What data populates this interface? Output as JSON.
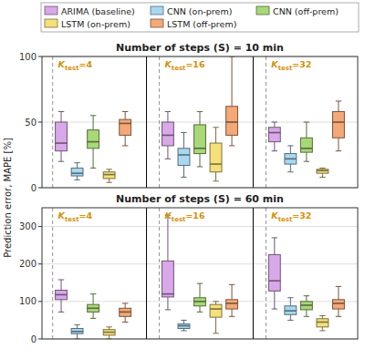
{
  "chart_data": [
    {
      "type": "box",
      "title": "Number of steps (S) = 10 min",
      "categories": [
        "Ktest=4",
        "Ktest=16",
        "Ktest=32"
      ],
      "ylim": [
        0,
        100
      ],
      "yticks": [
        0,
        50,
        100
      ],
      "grid": true,
      "legend": "top",
      "tick_labels": "y",
      "series": [
        {
          "name": "ARIMA (baseline)",
          "color": "#d9a8e8",
          "values": [
            [
              20,
              28,
              34,
              50,
              58
            ],
            [
              22,
              32,
              40,
              50,
              58
            ],
            [
              28,
              35,
              42,
              46,
              50
            ]
          ]
        },
        {
          "name": "CNN (on-prem)",
          "color": "#a8d8f0",
          "values": [
            [
              6,
              9,
              11,
              15,
              19
            ],
            [
              8,
              17,
              25,
              30,
              42
            ],
            [
              12,
              18,
              22,
              26,
              32
            ]
          ]
        },
        {
          "name": "CNN (off-prem)",
          "color": "#a8d878",
          "values": [
            [
              15,
              30,
              35,
              44,
              55
            ],
            [
              16,
              26,
              30,
              48,
              58
            ],
            [
              20,
              27,
              30,
              38,
              50
            ]
          ]
        },
        {
          "name": "LSTM (on-prem)",
          "color": "#f5e07a",
          "values": [
            [
              4,
              7,
              10,
              12,
              14
            ],
            [
              5,
              12,
              18,
              34,
              46
            ],
            [
              8,
              11,
              13,
              14,
              15
            ]
          ]
        },
        {
          "name": "LSTM (off-prem)",
          "color": "#f4a878",
          "values": [
            [
              32,
              40,
              49,
              52,
              58
            ],
            [
              32,
              40,
              50,
              62,
              100
            ],
            [
              28,
              38,
              50,
              58,
              66
            ]
          ]
        }
      ]
    },
    {
      "type": "box",
      "title": "Number of steps (S) = 60 min",
      "ylabel": "Prediction error, MAPE [%]",
      "categories": [
        "Ktest=4",
        "Ktest=16",
        "Ktest=32"
      ],
      "ylim": [
        0,
        350
      ],
      "yticks": [
        0,
        100,
        200,
        300
      ],
      "grid": true,
      "tick_labels": "y",
      "series": [
        {
          "color": "#d9a8e8",
          "values": [
            [
              72,
              105,
              118,
              130,
              158
            ],
            [
              78,
              112,
              120,
              208,
              330
            ],
            [
              80,
              128,
              155,
              225,
              270
            ]
          ]
        },
        {
          "color": "#a8d8f0",
          "values": [
            [
              0,
              14,
              20,
              28,
              38
            ],
            [
              22,
              28,
              35,
              40,
              50
            ],
            [
              50,
              65,
              75,
              88,
              110
            ]
          ]
        },
        {
          "color": "#a8d878",
          "values": [
            [
              55,
              72,
              82,
              92,
              120
            ],
            [
              72,
              88,
              100,
              110,
              148
            ],
            [
              60,
              78,
              90,
              100,
              115
            ]
          ]
        },
        {
          "color": "#f5e07a",
          "values": [
            [
              0,
              10,
              18,
              25,
              32
            ],
            [
              15,
              58,
              80,
              92,
              100
            ],
            [
              22,
              32,
              45,
              54,
              62
            ]
          ]
        },
        {
          "color": "#f4a878",
          "values": [
            [
              45,
              60,
              72,
              82,
              95
            ],
            [
              60,
              80,
              95,
              105,
              145
            ],
            [
              60,
              80,
              95,
              105,
              140
            ]
          ]
        }
      ]
    }
  ]
}
